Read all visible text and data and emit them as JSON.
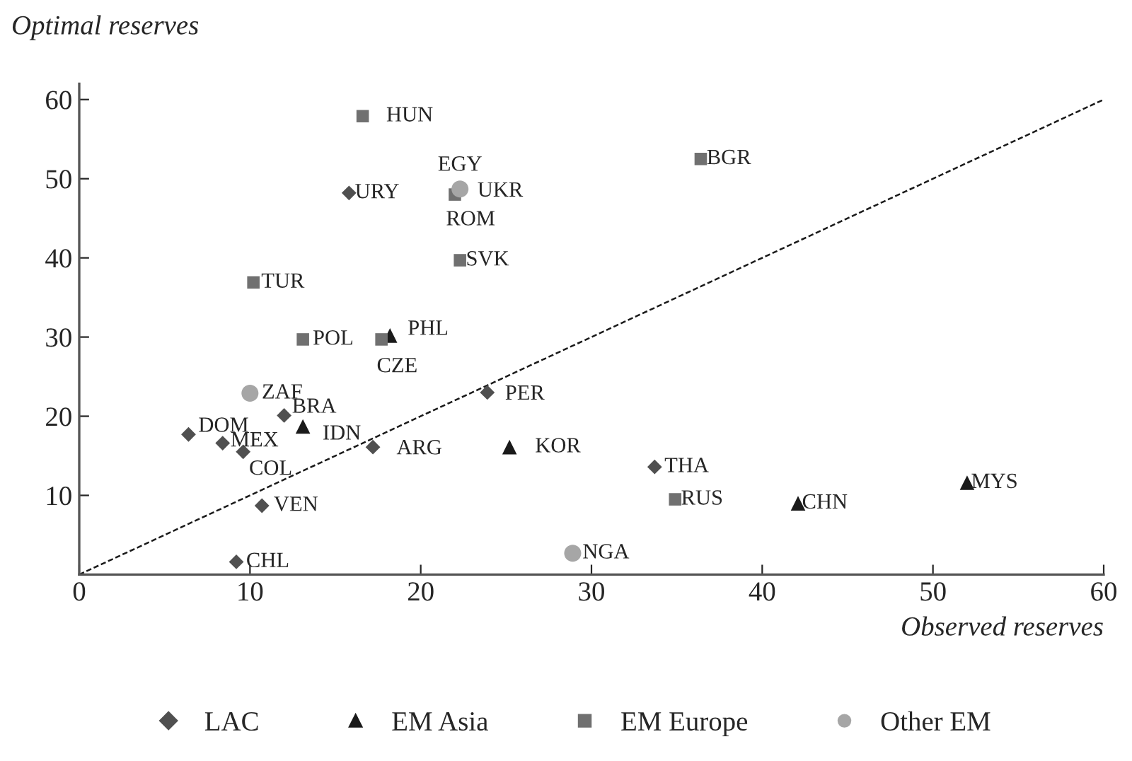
{
  "chart_data": {
    "type": "scatter",
    "xlabel": "Observed reserves",
    "ylabel": "Optimal reserves",
    "xlim": [
      0,
      60
    ],
    "ylim": [
      0,
      62
    ],
    "xticks": [
      0,
      10,
      20,
      30,
      40,
      50,
      60
    ],
    "yticks": [
      {
        "value": 0,
        "label": null
      },
      10,
      20,
      30,
      40,
      50,
      60
    ],
    "grid": false,
    "legend": "bottom",
    "series": [
      {
        "name": "LAC",
        "color": "#505050",
        "marker": "diamond",
        "x": [
          15.8,
          23.9,
          12.0,
          6.4,
          8.4,
          9.6,
          17.2,
          10.7,
          9.2,
          33.7
        ],
        "values": [
          48.2,
          23.0,
          20.1,
          17.7,
          16.6,
          15.5,
          16.1,
          8.7,
          1.6,
          13.6
        ]
      },
      {
        "name": "EM Asia",
        "color": "#1a1a1a",
        "marker": "triangle",
        "x": [
          18.2,
          13.1,
          25.2,
          42.1,
          52.0
        ],
        "values": [
          30.2,
          18.7,
          16.1,
          9.0,
          11.6
        ]
      },
      {
        "name": "EM Europe",
        "color": "#707070",
        "marker": "square",
        "x": [
          16.6,
          22.0,
          null,
          22.3,
          10.2,
          13.1,
          17.7,
          36.4,
          34.9
        ],
        "values": [
          57.9,
          48.0,
          null,
          39.7,
          36.9,
          29.7,
          29.7,
          52.5,
          9.5
        ]
      },
      {
        "name": "Other EM",
        "color": "#a6a6a6",
        "marker": "circle",
        "x": [
          22.3,
          10.0,
          28.9
        ],
        "values": [
          48.7,
          22.9,
          2.7
        ]
      },
      {
        "type": "line",
        "line_style": "dashed",
        "color": "#1a1a1a",
        "x": [
          0,
          60
        ],
        "values": [
          0,
          60
        ]
      }
    ],
    "annotations": [
      {
        "text": "URY",
        "x": 15.8,
        "y": 48.2
      },
      {
        "text": "PER",
        "x": 23.9,
        "y": 23.0
      },
      {
        "text": "BRA",
        "x": 12.0,
        "y": 20.1
      },
      {
        "text": "DOM",
        "x": 6.4,
        "y": 17.7
      },
      {
        "text": "MEX",
        "x": 8.4,
        "y": 16.6
      },
      {
        "text": "COL",
        "x": 9.6,
        "y": 15.5
      },
      {
        "text": "ARG",
        "x": 17.2,
        "y": 16.1
      },
      {
        "text": "VEN",
        "x": 10.7,
        "y": 8.7
      },
      {
        "text": "CHL",
        "x": 9.2,
        "y": 1.6
      },
      {
        "text": "THA",
        "x": 33.7,
        "y": 13.6
      },
      {
        "text": "PHL",
        "x": 18.2,
        "y": 30.2
      },
      {
        "text": "IDN",
        "x": 13.1,
        "y": 18.7
      },
      {
        "text": "KOR",
        "x": 25.2,
        "y": 16.1
      },
      {
        "text": "CHN",
        "x": 42.1,
        "y": 9.0
      },
      {
        "text": "MYS",
        "x": 52.0,
        "y": 11.6
      },
      {
        "text": "HUN",
        "x": 16.6,
        "y": 57.9
      },
      {
        "text": "ROM",
        "x": 22.0,
        "y": 48.0
      },
      {
        "text": "UKR",
        "x": 22.4,
        "y": 48.4
      },
      {
        "text": "SVK",
        "x": 22.3,
        "y": 39.7
      },
      {
        "text": "TUR",
        "x": 10.2,
        "y": 36.9
      },
      {
        "text": "POL",
        "x": 13.1,
        "y": 29.7
      },
      {
        "text": "CZE",
        "x": 17.7,
        "y": 29.7
      },
      {
        "text": "BGR",
        "x": 36.4,
        "y": 52.5
      },
      {
        "text": "RUS",
        "x": 34.9,
        "y": 9.5
      },
      {
        "text": "EGY",
        "x": 22.3,
        "y": 48.7
      },
      {
        "text": "ZAF",
        "x": 10.0,
        "y": 22.9
      },
      {
        "text": "NGA",
        "x": 28.9,
        "y": 2.7
      }
    ]
  }
}
